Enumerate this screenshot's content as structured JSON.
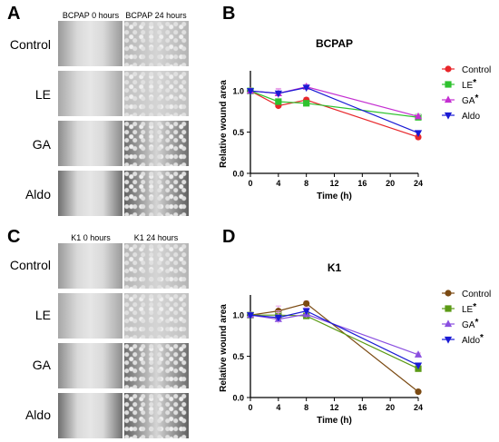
{
  "panels": {
    "A": {
      "label": "A",
      "columns": [
        "BCPAP 0 hours",
        "BCPAP 24 hours"
      ],
      "rows": [
        "Control",
        "LE",
        "GA",
        "Aldo"
      ]
    },
    "B": {
      "label": "B"
    },
    "C": {
      "label": "C",
      "columns": [
        "K1 0 hours",
        "K1 24 hours"
      ],
      "rows": [
        "Control",
        "LE",
        "GA",
        "Aldo"
      ]
    },
    "D": {
      "label": "D"
    }
  },
  "chart_data": [
    {
      "panel": "B",
      "type": "line",
      "title": "BCPAP",
      "xlabel": "Time (h)",
      "ylabel": "Relative wound area",
      "x": [
        0,
        4,
        8,
        24
      ],
      "xticks": [
        0,
        4,
        8,
        12,
        16,
        20,
        24
      ],
      "yticks": [
        0.0,
        0.5,
        1.0
      ],
      "ytick_labels": [
        "0.0",
        "0.5",
        "1.0"
      ],
      "xlim": [
        0,
        24
      ],
      "ylim": [
        0,
        1.2
      ],
      "legend_position": "right",
      "series": [
        {
          "name": "Control",
          "star": false,
          "marker": "circle",
          "color": "#e8262a",
          "values": [
            1.0,
            0.82,
            0.89,
            0.44
          ],
          "err": [
            0.02,
            0.04,
            0.03,
            0.02
          ]
        },
        {
          "name": "LE",
          "star": true,
          "marker": "square",
          "color": "#2ec22e",
          "values": [
            1.0,
            0.87,
            0.85,
            0.68
          ],
          "err": [
            0.02,
            0.03,
            0.03,
            0.02
          ]
        },
        {
          "name": "GA",
          "star": true,
          "marker": "triangle-up",
          "color": "#c42fd1",
          "values": [
            1.0,
            0.97,
            1.05,
            0.69
          ],
          "err": [
            0.02,
            0.05,
            0.03,
            0.02
          ]
        },
        {
          "name": "Aldo",
          "star": false,
          "marker": "triangle-down",
          "color": "#1a1ad4",
          "values": [
            1.0,
            0.97,
            1.04,
            0.49
          ],
          "err": [
            0.02,
            0.06,
            0.03,
            0.02
          ]
        }
      ]
    },
    {
      "panel": "D",
      "type": "line",
      "title": "K1",
      "xlabel": "Time (h)",
      "ylabel": "Relative wound area",
      "x": [
        0,
        4,
        8,
        24
      ],
      "xticks": [
        0,
        4,
        8,
        12,
        16,
        20,
        24
      ],
      "yticks": [
        0.0,
        0.5,
        1.0
      ],
      "ytick_labels": [
        "0.0",
        "0.5",
        "1.0"
      ],
      "xlim": [
        0,
        24
      ],
      "ylim": [
        0,
        1.2
      ],
      "legend_position": "right",
      "series": [
        {
          "name": "Control",
          "star": false,
          "marker": "circle",
          "color": "#7b4a12",
          "values": [
            1.0,
            1.05,
            1.14,
            0.07
          ],
          "err": [
            0.02,
            0.06,
            0.03,
            0.01
          ]
        },
        {
          "name": "LE",
          "star": true,
          "marker": "square",
          "color": "#5b9a15",
          "values": [
            1.0,
            1.0,
            0.99,
            0.35
          ],
          "err": [
            0.02,
            0.05,
            0.03,
            0.02
          ]
        },
        {
          "name": "GA",
          "star": true,
          "marker": "triangle-up",
          "color": "#8a4fe0",
          "values": [
            1.0,
            0.95,
            1.01,
            0.52
          ],
          "err": [
            0.02,
            0.05,
            0.04,
            0.02
          ]
        },
        {
          "name": "Aldo",
          "star": true,
          "marker": "triangle-down",
          "color": "#1a1ad4",
          "values": [
            1.0,
            0.97,
            1.05,
            0.39
          ],
          "err": [
            0.02,
            0.06,
            0.04,
            0.02
          ]
        }
      ]
    }
  ],
  "colors": {
    "error_bar": "#e8a0e8",
    "axis": "#000000"
  }
}
